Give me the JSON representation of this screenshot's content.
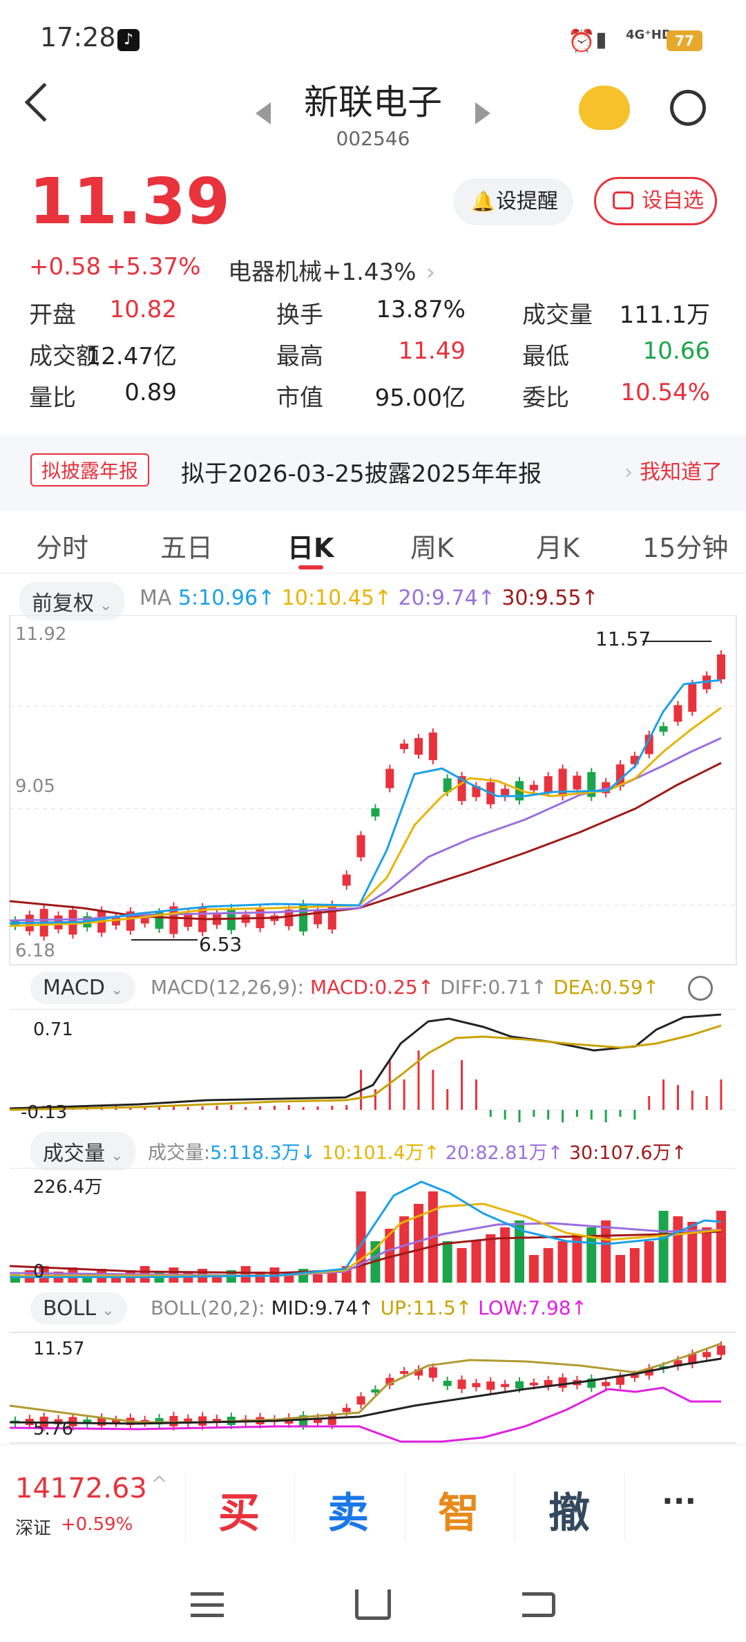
{
  "status": {
    "time": "17:28",
    "network": "4G⁺HD",
    "battery": "77"
  },
  "header": {
    "name": "新联电子",
    "code": "002546"
  },
  "quote": {
    "price": "11.39",
    "change": "+0.58",
    "pct": "+5.37%",
    "sector": "电器机械",
    "sector_pct": "+1.43%",
    "alert_label": "设提醒",
    "watch_label": "设自选",
    "stats": [
      [
        {
          "l": "开盘",
          "v": "10.82",
          "c": "red"
        },
        {
          "l": "换手",
          "v": "13.87%",
          "c": "dark"
        },
        {
          "l": "成交量",
          "v": "111.1万",
          "c": "dark"
        }
      ],
      [
        {
          "l": "成交额",
          "v": "12.47亿",
          "c": "dark"
        },
        {
          "l": "最高",
          "v": "11.49",
          "c": "red"
        },
        {
          "l": "最低",
          "v": "10.66",
          "c": "green"
        }
      ],
      [
        {
          "l": "量比",
          "v": "0.89",
          "c": "dark"
        },
        {
          "l": "市值",
          "v": "95.00亿",
          "c": "dark"
        },
        {
          "l": "委比",
          "v": "10.54%",
          "c": "red"
        }
      ]
    ]
  },
  "notice": {
    "tag": "拟披露年报",
    "text": "拟于2026-03-25披露2025年年报",
    "ack": "我知道了"
  },
  "tabs": [
    "分时",
    "五日",
    "日K",
    "周K",
    "月K",
    "15分钟"
  ],
  "active_tab": "日K",
  "ma": {
    "adj": "前复权",
    "label": "MA",
    "ma5": "5:10.96↑",
    "ma10": "10:10.45↑",
    "ma20": "20:9.74↑",
    "ma30": "30:9.55↑"
  },
  "kline": {
    "high_axis": "11.92",
    "mid_axis": "9.05",
    "low_axis": "6.18",
    "max_mark": "11.57",
    "min_mark": "6.53"
  },
  "macd": {
    "name": "MACD",
    "params": "MACD(12,26,9):",
    "macd": "MACD:0.25↑",
    "diff": "DIFF:0.71↑",
    "dea": "DEA:0.59↑",
    "top": "0.71",
    "bottom": "-0.13"
  },
  "volume": {
    "name": "成交量",
    "label": "成交量:",
    "v5": "5:118.3万↓",
    "v10": "10:101.4万↑",
    "v20": "20:82.81万↑",
    "v30": "30:107.6万↑",
    "top": "226.4万",
    "bottom": "0"
  },
  "boll": {
    "name": "BOLL",
    "params": "BOLL(20,2):",
    "mid": "MID:9.74↑",
    "up": "UP:11.5↑",
    "low": "LOW:7.98↑",
    "top": "11.57",
    "bottom": "5.76"
  },
  "index": {
    "value": "14172.63",
    "name": "深证",
    "pct": "+0.59%"
  },
  "trade": {
    "buy": "买",
    "sell": "卖",
    "smart": "智",
    "cancel": "撤",
    "more": "···"
  },
  "colors": {
    "up": "#e8323c",
    "down": "#1aa54a",
    "ma5": "#1aa0e8",
    "ma10": "#e8b400",
    "ma20": "#9a6fe0",
    "ma30": "#a01818"
  }
}
